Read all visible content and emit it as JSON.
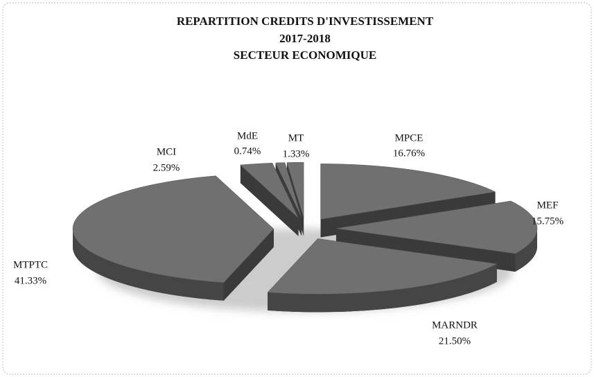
{
  "chart_data": {
    "type": "pie",
    "title": "REPARTITION CREDITS D'INVESTISSEMENT",
    "subtitle": [
      "2017-2018",
      "SECTEUR ECONOMIQUE"
    ],
    "categories": [
      "MPCE",
      "MEF",
      "MARNDR",
      "MTPTC",
      "MCI",
      "MdE",
      "MT"
    ],
    "values": [
      16.76,
      15.75,
      21.5,
      41.33,
      2.59,
      0.74,
      1.33
    ],
    "value_labels": [
      "16.76%",
      "15.75%",
      "21.50%",
      "41.33%",
      "2.59%",
      "0.74%",
      "1.33%"
    ],
    "color": "#707070"
  }
}
